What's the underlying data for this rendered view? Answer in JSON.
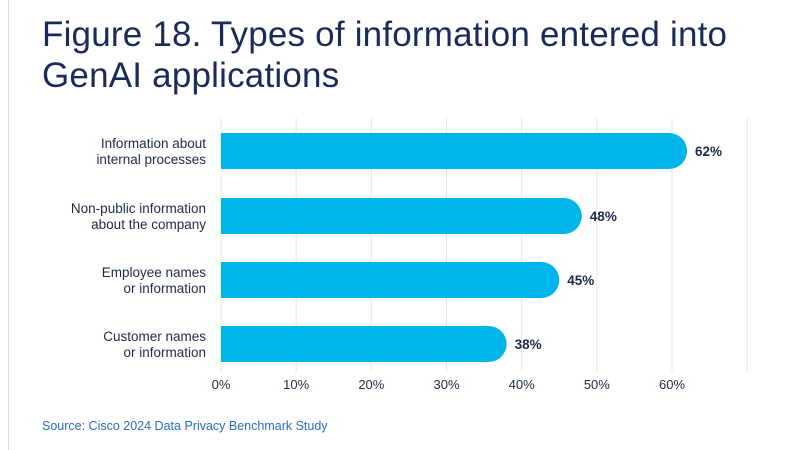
{
  "header": {
    "title_line1": "Figure 18. Types of information entered into",
    "title_line2": "GenAI applications"
  },
  "footer": {
    "source": "Source: Cisco 2024 Data Privacy Benchmark Study"
  },
  "colors": {
    "bar": "#00b5e8",
    "title": "#1a2a5a",
    "label": "#1f2a44",
    "grid": "#e3e6ea",
    "source": "#2a6dc5"
  },
  "chart_data": {
    "type": "bar",
    "orientation": "horizontal",
    "categories": [
      [
        "Information about",
        "internal processes"
      ],
      [
        "Non-public information",
        "about the company"
      ],
      [
        "Employee names",
        "or information"
      ],
      [
        "Customer names",
        "or information"
      ]
    ],
    "values": [
      62,
      48,
      45,
      38
    ],
    "value_labels": [
      "62%",
      "48%",
      "45%",
      "38%"
    ],
    "xlim": [
      0,
      70
    ],
    "xticks": [
      0,
      10,
      20,
      30,
      40,
      50,
      60
    ],
    "xtick_labels": [
      "0%",
      "10%",
      "20%",
      "30%",
      "40%",
      "50%",
      "60%"
    ],
    "grid": true,
    "title": "Figure 18. Types of information entered into GenAI applications",
    "xlabel": "",
    "ylabel": ""
  }
}
